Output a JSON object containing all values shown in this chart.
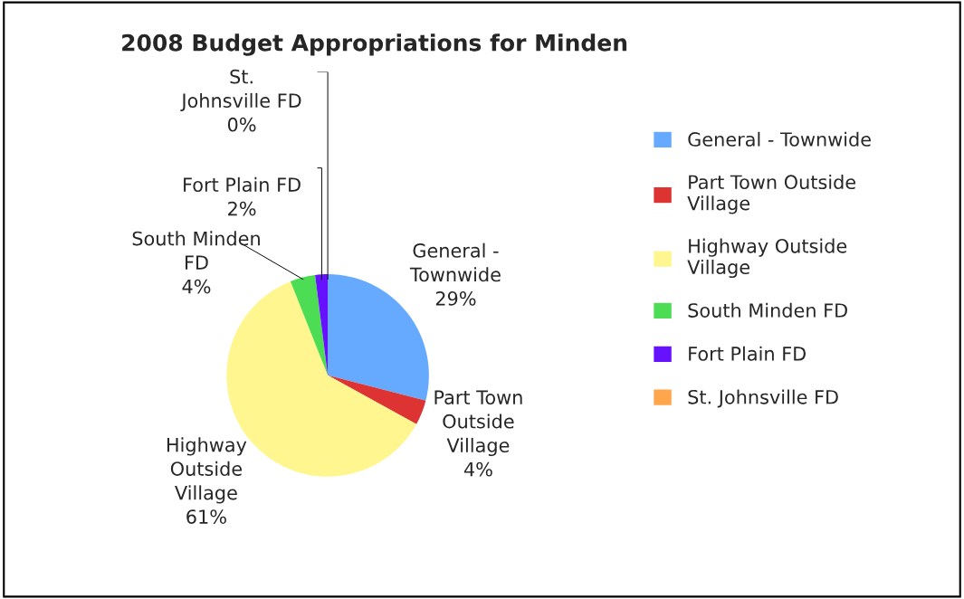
{
  "chart_data": {
    "type": "pie",
    "title": "2008 Budget Appropriations for Minden",
    "categories": [
      "General - Townwide",
      "Part Town Outside Village",
      "Highway Outside Village",
      "South Minden FD",
      "Fort Plain FD",
      "St. Johnsville FD"
    ],
    "values": [
      29,
      4,
      61,
      4,
      2,
      0
    ],
    "value_labels": [
      "29%",
      "4%",
      "61%",
      "4%",
      "2%",
      "0%"
    ],
    "colors": [
      "#66aaff",
      "#dd3333",
      "#fff68f",
      "#4ddd55",
      "#6611ff",
      "#ffa64d"
    ],
    "legend": "right"
  }
}
